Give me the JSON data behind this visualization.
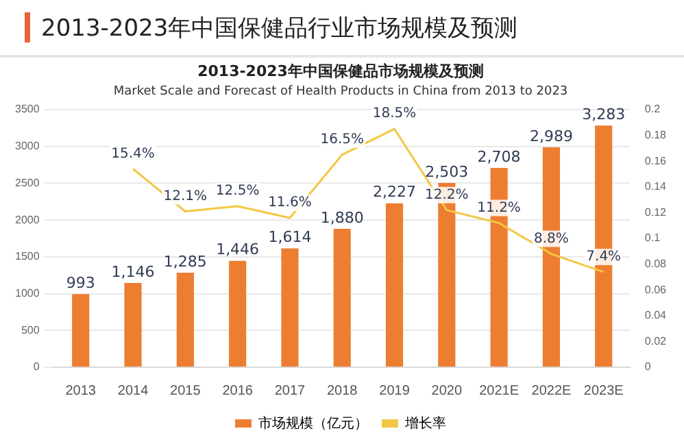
{
  "chart_data": {
    "type": "bar",
    "title": "2013-2023年中国保健品行业市场规模及预测",
    "subtitle": "2013-2023年中国保健品市场规模及预测",
    "annotations": [
      "Market Scale and Forecast of Health Products in China from 2013 to 2023"
    ],
    "categories": [
      "2013",
      "2014",
      "2015",
      "2016",
      "2017",
      "2018",
      "2019",
      "2020",
      "2021E",
      "2022E",
      "2023E"
    ],
    "series": [
      {
        "name": "市场规模（亿元）",
        "color": "#ed7d31",
        "values": [
          993,
          1146,
          1285,
          1446,
          1614,
          1880,
          2227,
          2503,
          2708,
          2989,
          3283
        ],
        "value_labels": [
          "993",
          "1,146",
          "1,285",
          "1,446",
          "1,614",
          "1,880",
          "2,227",
          "2,503",
          "2,708",
          "2,989",
          "3,283"
        ]
      },
      {
        "name": "增长率",
        "type": "line",
        "axis": "y2",
        "color": "#f2c744",
        "values": [
          null,
          0.154,
          0.121,
          0.125,
          0.116,
          0.165,
          0.185,
          0.122,
          0.112,
          0.088,
          0.074
        ],
        "value_labels": [
          null,
          "15.4%",
          "12.1%",
          "12.5%",
          "11.6%",
          "16.5%",
          "18.5%",
          "12.2%",
          "11.2%",
          "8.8%",
          "7.4%"
        ]
      }
    ],
    "ylim": [
      0,
      3500
    ],
    "yticks": [
      0,
      500,
      1000,
      1500,
      2000,
      2500,
      3000,
      3500
    ],
    "y2lim": [
      0,
      0.2
    ],
    "y2ticks": [
      0,
      0.02,
      0.04,
      0.06,
      0.08,
      0.1,
      0.12,
      0.14,
      0.16,
      0.18,
      0.2
    ],
    "grid": "y",
    "legend": "bottom",
    "marker": "none"
  }
}
